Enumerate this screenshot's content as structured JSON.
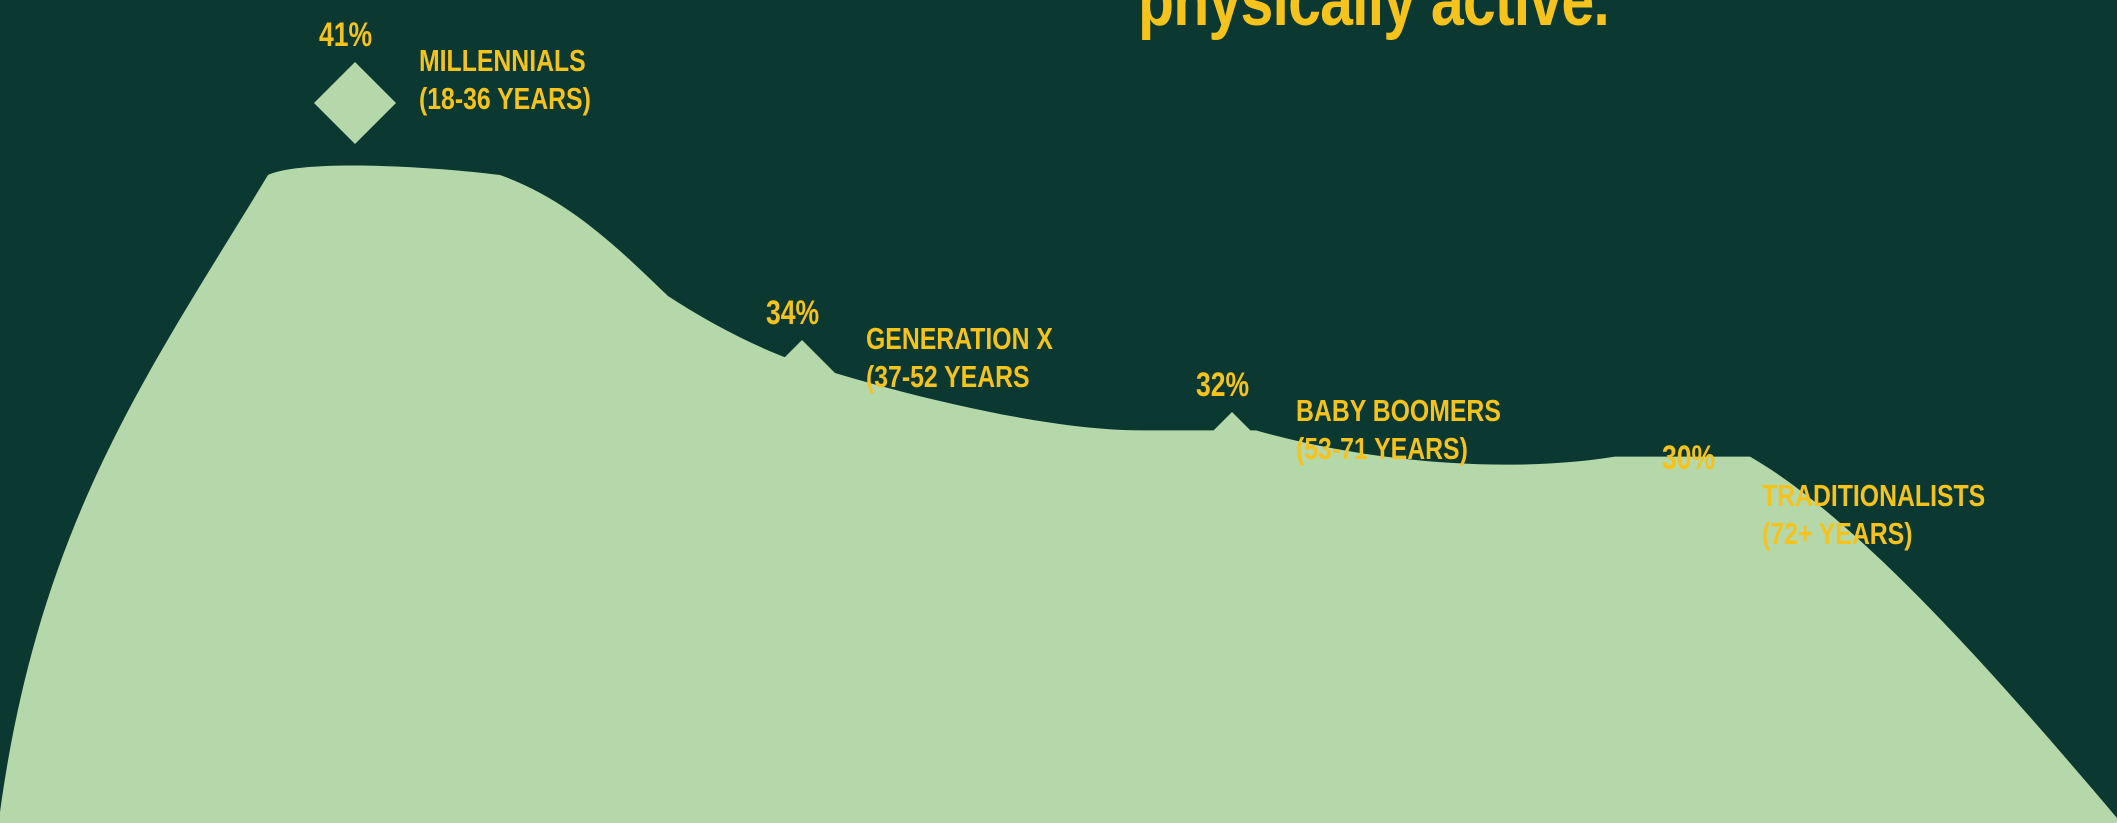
{
  "title": "physically active.",
  "colors": {
    "background": "#0b3830",
    "area": "#b5d8ab",
    "text": "#f6c21c"
  },
  "chart_data": {
    "type": "area",
    "unit": "%",
    "categories": [
      "MILLENNIALS (18-36 YEARS)",
      "GENERATION X (37-52 YEARS",
      "BABY BOOMERS (53-71 YEARS)",
      "TRADITIONALISTS (72+ YEARS)"
    ],
    "values": [
      41,
      34,
      32,
      30
    ],
    "points": [
      {
        "value_label": "41%",
        "line1": "MILLENNIALS",
        "line2": "(18-36 YEARS)"
      },
      {
        "value_label": "34%",
        "line1": "GENERATION X",
        "line2": "(37-52 YEARS"
      },
      {
        "value_label": "32%",
        "line1": "BABY BOOMERS",
        "line2": "(53-71 YEARS)"
      },
      {
        "value_label": "30%",
        "line1": "TRADITIONALISTS",
        "line2": "(72+ YEARS)"
      }
    ]
  }
}
